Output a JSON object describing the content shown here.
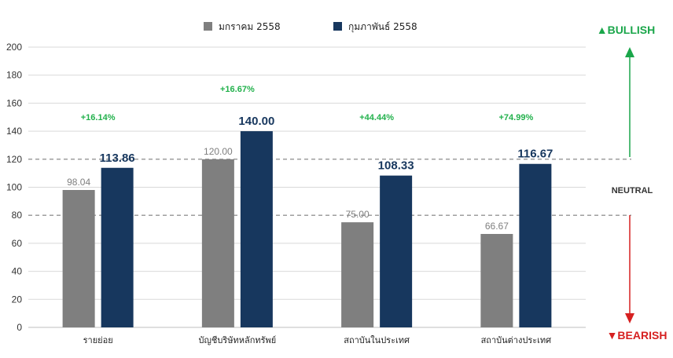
{
  "chart_data": {
    "type": "bar",
    "categories": [
      "รายย่อย",
      "บัญชีบริษัทหลักทรัพย์",
      "สถาบันในประเทศ",
      "สถาบันต่างประเทศ"
    ],
    "series": [
      {
        "name": "มกราคม 2558",
        "color": "#7f7f7f",
        "values": [
          98.04,
          120.0,
          75.0,
          66.67
        ],
        "labels": [
          "98.04",
          "120.00",
          "75.00",
          "66.67"
        ]
      },
      {
        "name": "กุมภาพันธ์ 2558",
        "color": "#17375e",
        "values": [
          113.86,
          140.0,
          108.33,
          116.67
        ],
        "labels": [
          "113.86",
          "140.00",
          "108.33",
          "116.67"
        ]
      }
    ],
    "change_labels": [
      "+16.14%",
      "+16.67%",
      "+44.44%",
      "+74.99%"
    ],
    "change_label_values": [
      148,
      168,
      148,
      148
    ],
    "yticks": [
      0,
      20,
      40,
      60,
      80,
      100,
      120,
      140,
      160,
      180,
      200
    ],
    "ylim": [
      0,
      200
    ],
    "thresholds": [
      120,
      80
    ],
    "signals": {
      "bullish": "▲BULLISH",
      "neutral": "NEUTRAL",
      "bearish": "▼BEARISH"
    },
    "colors": {
      "bullish": "#1aa64a",
      "bearish": "#d62020",
      "change": "#22b14c",
      "grid": "#d9d9d9",
      "threshold": "#7f7f7f"
    },
    "legend_position": "top-center",
    "grid": true,
    "title": "",
    "xlabel": "",
    "ylabel": ""
  }
}
